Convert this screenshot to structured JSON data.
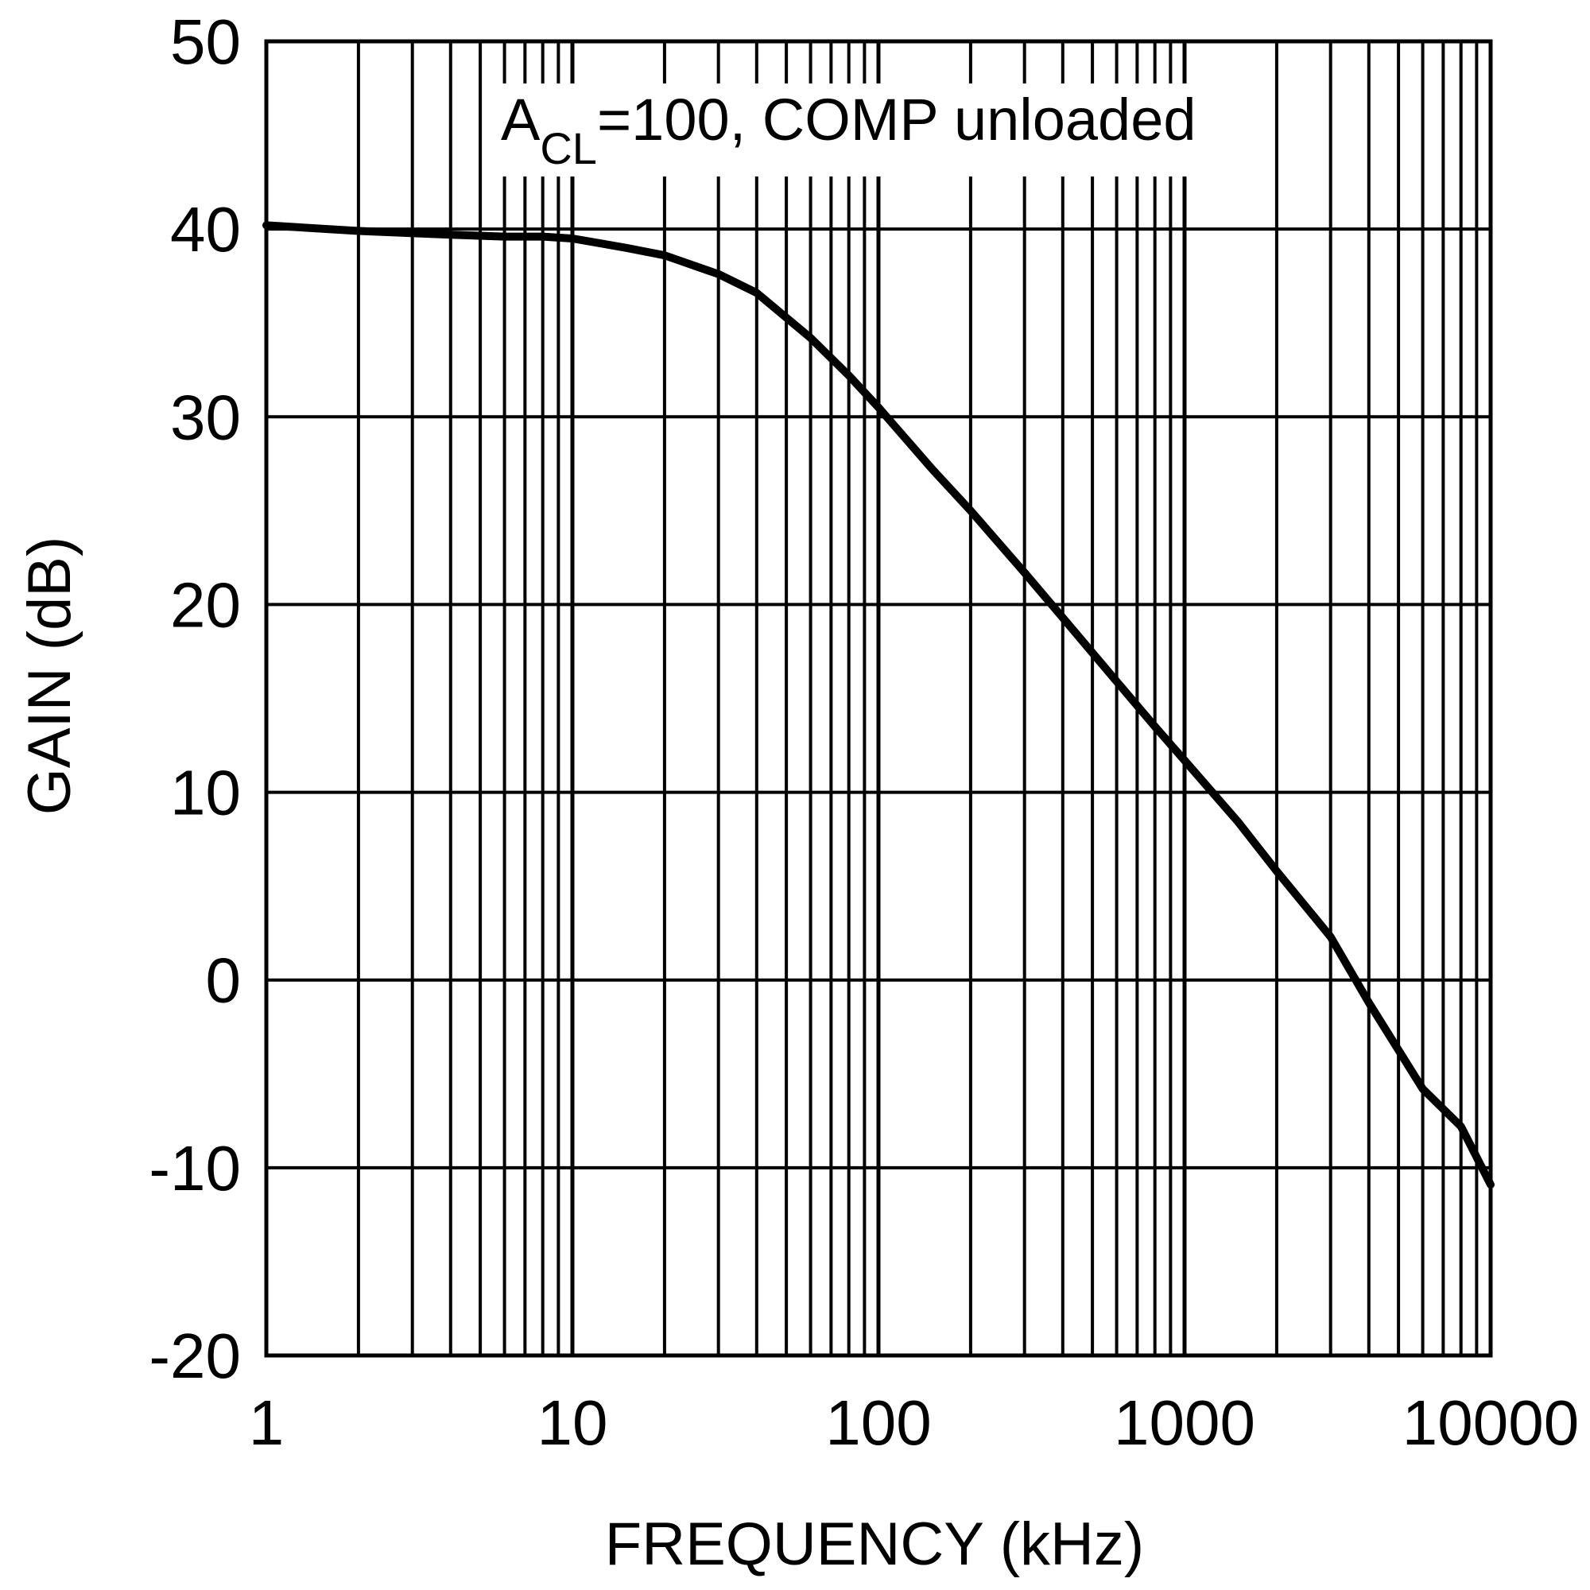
{
  "chart_data": {
    "type": "line",
    "title": "",
    "annotation": {
      "main": "A",
      "subscript": "CL",
      "rest": "=100, COMP unloaded"
    },
    "xlabel": "FREQUENCY (kHz)",
    "ylabel": "GAIN (dB)",
    "x_scale": "log",
    "xlim": [
      1,
      10000
    ],
    "ylim": [
      -20,
      50
    ],
    "x_ticks": [
      1,
      10,
      100,
      1000,
      10000
    ],
    "x_tick_labels": [
      "1",
      "10",
      "100",
      "1000",
      "10000"
    ],
    "y_ticks": [
      -20,
      -10,
      0,
      10,
      20,
      30,
      40,
      50
    ],
    "y_tick_labels": [
      "-20",
      "-10",
      "0",
      "10",
      "20",
      "30",
      "40",
      "50"
    ],
    "grid": true,
    "series": [
      {
        "name": "Gain",
        "color": "#000000",
        "x": [
          1,
          2,
          4,
          6,
          8,
          10,
          15,
          20,
          30,
          40,
          60,
          80,
          100,
          150,
          200,
          300,
          400,
          600,
          800,
          1000,
          1500,
          2000,
          3000,
          4000,
          6000,
          8000,
          10000
        ],
        "y": [
          40.2,
          39.9,
          39.7,
          39.6,
          39.6,
          39.5,
          39.0,
          38.6,
          37.6,
          36.6,
          34.2,
          32.2,
          30.5,
          27.2,
          25.0,
          21.7,
          19.3,
          15.9,
          13.5,
          11.7,
          8.4,
          5.8,
          2.3,
          -1.2,
          -5.8,
          -7.8,
          -10.9
        ]
      }
    ]
  }
}
